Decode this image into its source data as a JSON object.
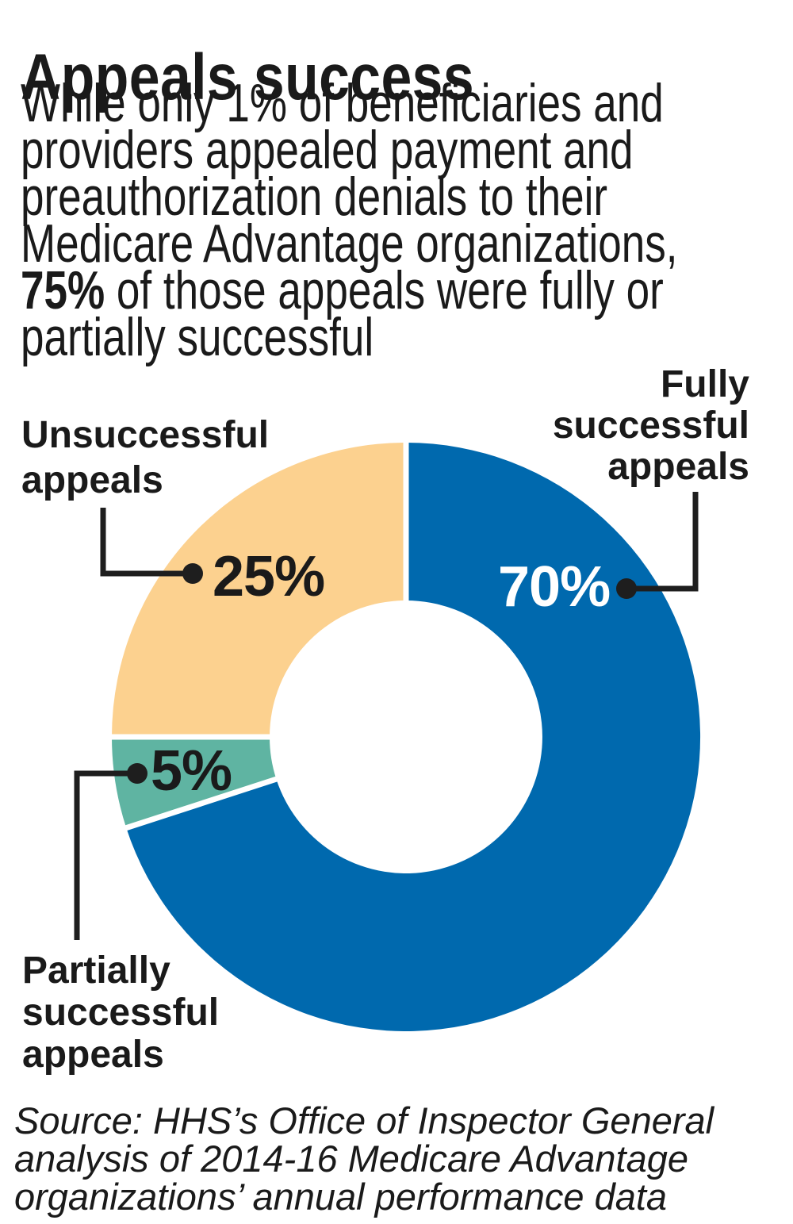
{
  "title": "Appeals success",
  "intro": {
    "part1": "While only 1% of beneficiaries and\nproviders appealed payment and\npreauthorization denials to their\nMedicare Advantage organizations,\n",
    "highlight": "75%",
    "part2": " of those appeals were fully or\npartially successful"
  },
  "chart_data": {
    "type": "pie",
    "subtype": "donut",
    "title": "Appeals success",
    "start_angle_deg": 0,
    "direction": "clockwise",
    "donut_hole_ratio": 0.46,
    "divider_color": "#ffffff",
    "slices": [
      {
        "label": "Fully successful appeals",
        "value": 70,
        "unit": "%",
        "value_label": "70%",
        "color": "#0069ae",
        "value_label_color": "#ffffff"
      },
      {
        "label": "Partially successful appeals",
        "value": 5,
        "unit": "%",
        "value_label": "5%",
        "color": "#5fb4a2",
        "value_label_color": "#1a1a1a"
      },
      {
        "label": "Unsuccessful appeals",
        "value": 25,
        "unit": "%",
        "value_label": "25%",
        "color": "#fcd18f",
        "value_label_color": "#1a1a1a"
      }
    ],
    "labels_position": "callout",
    "legend": "none"
  },
  "callouts": {
    "fully_label": "Fully\nsuccessful\nappeals",
    "unsuccessful_label": "Unsuccessful\nappeals",
    "partially_label": "Partially\nsuccessful\nappeals",
    "fully_pct": "70%",
    "unsuccessful_pct": "25%",
    "partially_pct": "5%"
  },
  "source": "Source: HHS’s Office of Inspector General\nanalysis of 2014-16 Medicare Advantage\norganizations’ annual performance data",
  "colors": {
    "fully": "#0069ae",
    "partially": "#5fb4a2",
    "unsuccessful": "#fcd18f",
    "connector": "#1e1e1e",
    "text": "#1a1a1a",
    "background": "#ffffff"
  }
}
